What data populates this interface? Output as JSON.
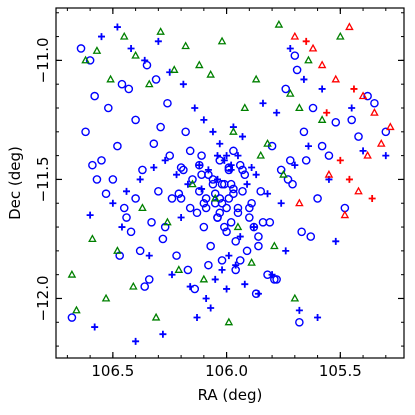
{
  "chart_data": {
    "type": "scatter",
    "title": "",
    "xlabel": "RA (deg)",
    "ylabel": "Dec (deg)",
    "x_axis_inverted": true,
    "xlim": [
      106.75,
      105.22
    ],
    "ylim": [
      -12.25,
      -10.78
    ],
    "xticks": [
      106.5,
      106.0,
      105.5
    ],
    "xtick_labels": [
      "106.5",
      "106.0",
      "105.5"
    ],
    "yticks": [
      -11.0,
      -11.5,
      -12.0
    ],
    "ytick_labels": [
      "−11.0",
      "−11.5",
      "−12.0"
    ],
    "minor_tick_step_x": 0.1,
    "minor_tick_step_y": 0.1,
    "grid": false,
    "legend": false,
    "colors": {
      "blue": "#0000ff",
      "green": "#008000",
      "red": "#ff0000"
    },
    "series": [
      {
        "marker": "circle-open",
        "color": "#0000ff",
        "x": [
          106.64,
          106.6,
          106.58,
          106.52,
          106.46,
          106.4,
          106.35,
          106.32,
          106.29,
          106.25,
          106.2,
          106.18,
          106.15,
          106.12,
          106.08,
          106.05,
          106.03,
          106.01,
          105.99,
          105.97,
          105.95,
          105.93,
          105.9,
          105.88,
          105.85,
          105.8,
          105.74,
          105.7,
          105.65,
          105.6,
          106.62,
          106.55,
          106.5,
          106.45,
          106.42,
          106.38,
          106.33,
          106.28,
          106.22,
          106.17,
          106.13,
          106.1,
          106.07,
          106.04,
          106.02,
          106.0,
          105.98,
          105.96,
          105.94,
          105.91,
          105.86,
          105.82,
          105.76,
          105.71,
          105.66,
          105.62,
          105.55,
          105.45,
          105.38,
          105.3,
          106.48,
          106.43,
          106.37,
          106.31,
          106.26,
          106.21,
          106.16,
          106.11,
          106.09,
          106.06,
          106.03,
          106.01,
          105.99,
          105.97,
          105.92,
          105.89,
          105.84,
          105.79,
          105.73,
          105.69,
          105.58,
          105.52,
          106.68,
          106.57,
          106.47,
          106.36,
          106.24,
          106.14,
          106.08,
          106.02,
          105.96,
          105.87,
          105.78,
          105.68,
          105.63,
          105.48,
          105.42,
          105.35,
          106.59,
          106.53,
          106.44,
          106.34,
          106.27,
          106.19,
          106.11,
          106.05,
          106.0,
          105.95,
          105.9,
          105.81,
          105.72,
          105.67,
          106.4,
          106.3,
          106.2,
          106.1,
          106.04,
          105.98,
          105.93,
          105.86,
          106.12,
          106.06,
          106.02,
          105.97,
          106.16,
          106.09,
          106.03,
          105.99,
          105.94
        ],
        "y": [
          -10.95,
          -11.0,
          -11.15,
          -11.2,
          -11.1,
          -11.25,
          -11.02,
          -11.35,
          -11.28,
          -11.4,
          -11.45,
          -11.3,
          -11.5,
          -11.55,
          -11.48,
          -11.6,
          -11.42,
          -11.52,
          -11.58,
          -11.38,
          -11.62,
          -11.46,
          -11.66,
          -11.7,
          -11.55,
          -11.36,
          -11.12,
          -10.98,
          -11.42,
          -11.58,
          -11.3,
          -11.42,
          -11.5,
          -11.62,
          -11.72,
          -11.8,
          -11.68,
          -11.75,
          -11.82,
          -11.88,
          -11.64,
          -11.7,
          -11.78,
          -11.66,
          -11.6,
          -11.72,
          -11.68,
          -11.76,
          -11.84,
          -11.8,
          -11.74,
          -11.9,
          -11.46,
          -11.52,
          -11.3,
          -11.2,
          -11.4,
          -11.25,
          -11.15,
          -11.3,
          -11.36,
          -11.12,
          -11.46,
          -11.08,
          -11.18,
          -11.56,
          -11.62,
          -11.4,
          -11.58,
          -11.52,
          -11.64,
          -11.7,
          -11.45,
          -11.54,
          -11.48,
          -11.6,
          -11.68,
          -11.92,
          -11.5,
          -11.04,
          -11.36,
          -11.26,
          -12.08,
          -11.5,
          -11.82,
          -11.95,
          -11.58,
          -11.96,
          -11.86,
          -11.84,
          -11.88,
          -11.98,
          -11.92,
          -12.1,
          -11.74,
          -11.62,
          -11.32,
          -11.18,
          -11.44,
          -11.56,
          -11.66,
          -11.92,
          -11.7,
          -11.46,
          -11.48,
          -11.56,
          -11.62,
          -11.64,
          -11.62,
          -11.68,
          -11.42,
          -11.72,
          -11.58,
          -11.55,
          -11.58,
          -11.6,
          -11.66,
          -11.52,
          -11.55,
          -11.78,
          -11.44,
          -11.5,
          -11.52,
          -11.56,
          -11.38,
          -11.62,
          -11.58,
          -11.46,
          -11.44
        ]
      },
      {
        "marker": "plus",
        "color": "#0000ff",
        "x": [
          106.55,
          106.48,
          106.42,
          106.36,
          106.3,
          106.25,
          106.19,
          106.14,
          106.1,
          106.06,
          106.03,
          106.0,
          105.97,
          105.93,
          105.89,
          105.84,
          105.78,
          105.72,
          105.66,
          105.58,
          105.45,
          105.4,
          106.6,
          106.5,
          106.44,
          106.38,
          106.32,
          106.27,
          106.22,
          106.17,
          106.12,
          106.08,
          106.04,
          106.01,
          105.98,
          105.95,
          105.91,
          105.87,
          105.82,
          105.76,
          105.7,
          105.64,
          105.55,
          105.3,
          106.46,
          106.34,
          106.24,
          106.16,
          106.09,
          106.05,
          106.02,
          105.99,
          105.96,
          105.92,
          105.86,
          105.8,
          105.68,
          105.6,
          105.52,
          106.58,
          106.4,
          106.28,
          106.13,
          106.07,
          106.0,
          105.94,
          105.88,
          105.74,
          106.2,
          106.11,
          106.04,
          105.98
        ],
        "y": [
          -10.9,
          -10.86,
          -10.95,
          -11.0,
          -10.92,
          -11.05,
          -11.1,
          -11.2,
          -11.25,
          -11.3,
          -11.35,
          -11.4,
          -11.28,
          -11.32,
          -11.45,
          -11.18,
          -11.22,
          -10.95,
          -11.08,
          -11.12,
          -11.2,
          -11.38,
          -11.65,
          -11.6,
          -11.55,
          -11.5,
          -11.45,
          -11.42,
          -11.48,
          -11.52,
          -11.44,
          -11.46,
          -11.5,
          -11.42,
          -11.46,
          -11.4,
          -11.52,
          -11.48,
          -11.56,
          -11.6,
          -11.44,
          -11.36,
          -11.5,
          -11.4,
          -11.7,
          -11.82,
          -11.9,
          -11.95,
          -12.0,
          -11.92,
          -11.88,
          -11.82,
          -11.86,
          -11.94,
          -11.98,
          -11.9,
          -12.05,
          -12.08,
          -11.76,
          -12.12,
          -12.18,
          -12.15,
          -12.08,
          -12.04,
          -11.96,
          -11.74,
          -11.7,
          -11.8,
          -11.66,
          -11.54,
          -11.4,
          -11.44
        ]
      },
      {
        "marker": "triangle-open",
        "color": "#008000",
        "x": [
          106.62,
          106.57,
          106.51,
          106.45,
          106.4,
          106.34,
          106.29,
          106.23,
          106.18,
          106.12,
          106.07,
          106.02,
          105.97,
          105.92,
          105.87,
          105.82,
          105.77,
          105.72,
          105.64,
          105.58,
          105.5,
          106.68,
          106.59,
          106.48,
          106.37,
          106.26,
          106.15,
          106.05,
          105.95,
          105.85,
          105.75,
          105.68,
          106.66,
          106.53,
          106.41,
          106.31,
          106.21,
          106.1,
          105.99,
          105.89,
          105.79,
          105.7
        ],
        "y": [
          -11.0,
          -10.96,
          -11.08,
          -10.9,
          -10.98,
          -11.1,
          -10.88,
          -11.04,
          -10.94,
          -11.02,
          -11.06,
          -10.92,
          -11.3,
          -11.2,
          -11.08,
          -11.35,
          -10.85,
          -11.14,
          -11.0,
          -11.25,
          -10.9,
          -11.9,
          -11.75,
          -11.8,
          -11.62,
          -11.68,
          -11.52,
          -11.58,
          -11.7,
          -11.4,
          -11.48,
          -11.2,
          -12.05,
          -12.0,
          -11.95,
          -12.08,
          -11.88,
          -11.92,
          -12.1,
          -11.85,
          -11.78,
          -12.0
        ]
      },
      {
        "marker": "triangle-open",
        "color": "#ff0000",
        "x": [
          105.7,
          105.62,
          105.58,
          105.52,
          105.46,
          105.4,
          105.35,
          105.32,
          105.28,
          105.55,
          105.48,
          105.42,
          105.38,
          105.68
        ],
        "y": [
          -10.9,
          -10.95,
          -11.02,
          -11.08,
          -10.86,
          -11.15,
          -11.22,
          -11.35,
          -11.28,
          -11.48,
          -11.65,
          -11.55,
          -11.4,
          -11.6
        ]
      },
      {
        "marker": "plus",
        "color": "#ff0000",
        "x": [
          105.65,
          105.56,
          105.5,
          105.44,
          105.36,
          105.46
        ],
        "y": [
          -10.92,
          -11.22,
          -11.42,
          -11.12,
          -11.58,
          -11.5
        ]
      }
    ]
  }
}
